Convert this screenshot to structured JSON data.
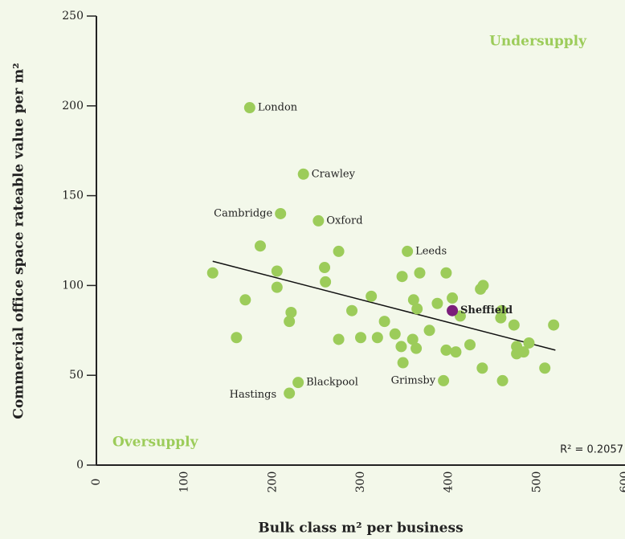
{
  "chart_data": {
    "type": "scatter",
    "x_label": "Bulk class m² per business",
    "y_label": "Commercial office space rateable value per m²",
    "annotations": [
      "Undersupply",
      "Oversupply",
      "R² = 0.2057"
    ],
    "xlim": [
      0,
      600
    ],
    "xticks": [
      0,
      100,
      200,
      300,
      400,
      500,
      600
    ],
    "ylim": [
      0,
      250
    ],
    "yticks": [
      0,
      50,
      100,
      150,
      200,
      250
    ],
    "series": [
      {
        "color": "#9ccc5a",
        "x": [
          174,
          235,
          209,
          252,
          353,
          229,
          219,
          394,
          132,
          169,
          159,
          186,
          205,
          205,
          221,
          219,
          259,
          260,
          275,
          275,
          290,
          300,
          312,
          319,
          327,
          339,
          346,
          348,
          347,
          360,
          364,
          359,
          363,
          367,
          378,
          387,
          397,
          397,
          404,
          408,
          413,
          424,
          436,
          439,
          438,
          459,
          460,
          461,
          474,
          477,
          477,
          485,
          491,
          509,
          519
        ],
        "values": [
          199,
          162,
          140,
          136,
          119,
          46,
          40,
          47,
          107,
          92,
          71,
          122,
          108,
          99,
          85,
          80,
          110,
          102,
          119,
          70,
          86,
          71,
          94,
          71,
          80,
          73,
          66,
          57,
          105,
          92,
          87,
          70,
          65,
          107,
          75,
          90,
          107,
          64,
          93,
          63,
          83,
          67,
          98,
          100,
          54,
          82,
          86,
          47,
          78,
          66,
          62,
          63,
          68,
          54,
          78
        ],
        "labels": [
          "London",
          "Crawley",
          "Cambridge",
          "Oxford",
          "Leeds",
          "Blackpool",
          "Hastings",
          "Grimsby"
        ]
      },
      {
        "color": "#7b1e7a",
        "x": [
          404
        ],
        "values": [
          86
        ],
        "labels": [
          "Sheffield"
        ]
      }
    ],
    "trendline": {
      "x": [
        132,
        521
      ],
      "values": [
        113.5,
        64
      ]
    }
  }
}
